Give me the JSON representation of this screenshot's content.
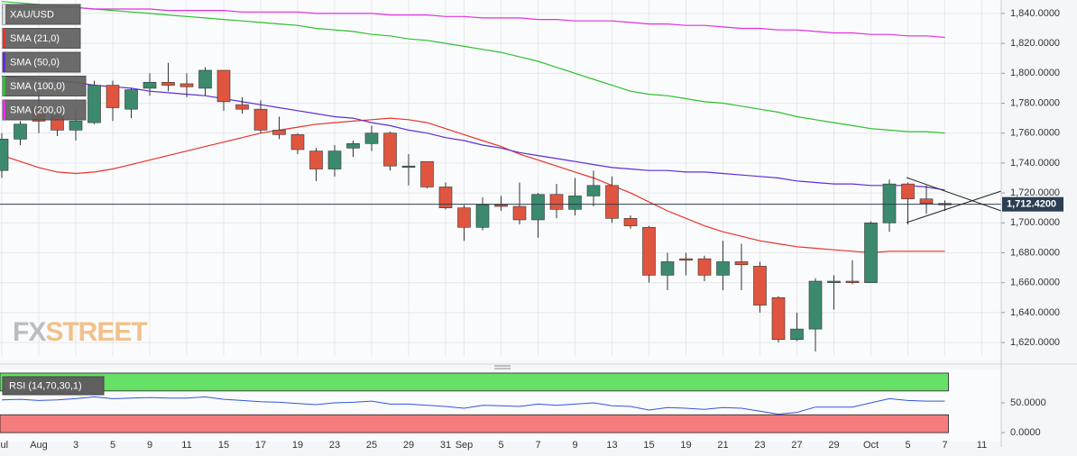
{
  "chart_data": [
    {
      "type": "candlestick",
      "symbol": "XAU/USD",
      "categories": [
        "Jul",
        null,
        "Aug",
        null,
        "3",
        null,
        "5",
        null,
        "9",
        null,
        "11",
        null,
        "15",
        null,
        "17",
        null,
        "19",
        null,
        "23",
        null,
        "25",
        null,
        "29",
        null,
        "31",
        "Sep",
        null,
        "5",
        null,
        "7",
        null,
        "9",
        null,
        "13",
        null,
        "15",
        null,
        "19",
        null,
        "21",
        null,
        "23",
        null,
        "27",
        null,
        "29",
        null,
        "Oct",
        null,
        "5",
        null,
        "7",
        null,
        "11"
      ],
      "open": [
        1735,
        1756,
        1778,
        1772,
        1762,
        1767,
        1792,
        1776,
        1790,
        1794,
        1793,
        1790,
        1802,
        1779,
        1776,
        1762,
        1759,
        1748,
        1736,
        1750,
        1753,
        1760,
        1738,
        1741,
        1724,
        1710,
        1697,
        1712,
        1711,
        1702,
        1719,
        1709,
        1718,
        1725,
        1703,
        1697,
        1665,
        1676,
        1676,
        1665,
        1674,
        1671,
        1650,
        1622,
        1629,
        1660,
        1661,
        1660,
        1700,
        1726,
        1716,
        1713,
        null,
        null
      ],
      "high": [
        1760,
        1768,
        1790,
        1778,
        1775,
        1795,
        1795,
        1790,
        1800,
        1807,
        1800,
        1804,
        1802,
        1784,
        1782,
        1771,
        1760,
        1750,
        1752,
        1755,
        1765,
        1761,
        1746,
        1741,
        1727,
        1712,
        1717,
        1718,
        1727,
        1720,
        1726,
        1730,
        1735,
        1731,
        1705,
        1698,
        1680,
        1680,
        1678,
        1688,
        1686,
        1674,
        1651,
        1640,
        1663,
        1665,
        1675,
        1701,
        1729,
        1727,
        1725,
        1715,
        null,
        null
      ],
      "low": [
        1730,
        1752,
        1760,
        1758,
        1755,
        1766,
        1768,
        1770,
        1785,
        1788,
        1784,
        1785,
        1775,
        1773,
        1760,
        1756,
        1746,
        1728,
        1731,
        1744,
        1748,
        1735,
        1725,
        1723,
        1709,
        1688,
        1695,
        1708,
        1699,
        1690,
        1703,
        1705,
        1711,
        1700,
        1696,
        1660,
        1655,
        1665,
        1661,
        1655,
        1655,
        1640,
        1620,
        1621,
        1614,
        1642,
        1659,
        1660,
        1694,
        1699,
        1706,
        1708,
        null,
        null
      ],
      "close": [
        1756,
        1766,
        1768,
        1762,
        1768,
        1792,
        1777,
        1789,
        1794,
        1792,
        1791,
        1802,
        1781,
        1776,
        1762,
        1759,
        1749,
        1736,
        1748,
        1753,
        1760,
        1738,
        1738,
        1724,
        1710,
        1697,
        1712,
        1711,
        1702,
        1719,
        1709,
        1718,
        1725,
        1703,
        1698,
        1665,
        1674,
        1675,
        1665,
        1674,
        1672,
        1645,
        1622,
        1629,
        1661,
        1661,
        1660,
        1700,
        1726,
        1716,
        1713,
        1712,
        null,
        null
      ],
      "up_color": "#3b8a6e",
      "down_color": "#e0553f",
      "series": [
        {
          "name": "SMA (21,0)",
          "color": "#e8332a",
          "values": [
            1745,
            1741,
            1737,
            1734,
            1733,
            1734,
            1736,
            1739,
            1742,
            1745,
            1748,
            1751,
            1754,
            1757,
            1760,
            1762,
            1764,
            1766,
            1767,
            1768,
            1769,
            1770,
            1769,
            1767,
            1763,
            1759,
            1755,
            1751,
            1746,
            1742,
            1738,
            1734,
            1730,
            1725,
            1720,
            1714,
            1708,
            1703,
            1698,
            1694,
            1691,
            1688,
            1686,
            1684,
            1683,
            1682,
            1681,
            1680,
            1681,
            1681,
            1681,
            1681,
            null,
            null
          ]
        },
        {
          "name": "SMA (50,0)",
          "color": "#5b2fd6",
          "values": [
            1798,
            1797,
            1796,
            1795,
            1794,
            1792,
            1791,
            1790,
            1788,
            1787,
            1786,
            1785,
            1783,
            1781,
            1779,
            1777,
            1775,
            1773,
            1771,
            1770,
            1767,
            1765,
            1762,
            1760,
            1757,
            1755,
            1752,
            1750,
            1747,
            1745,
            1743,
            1741,
            1739,
            1737,
            1736,
            1735,
            1735,
            1734,
            1734,
            1733,
            1732,
            1731,
            1730,
            1728,
            1727,
            1726,
            1726,
            1725,
            1725,
            1725,
            1724,
            1722,
            null,
            null
          ]
        },
        {
          "name": "SMA (100,0)",
          "color": "#2ec02e",
          "values": [
            1848,
            1847,
            1846,
            1845,
            1844,
            1843,
            1842,
            1841,
            1840,
            1839,
            1838,
            1837,
            1836,
            1835,
            1834,
            1833,
            1832,
            1830,
            1829,
            1828,
            1826,
            1825,
            1823,
            1822,
            1820,
            1818,
            1816,
            1814,
            1811,
            1808,
            1804,
            1800,
            1796,
            1792,
            1788,
            1786,
            1785,
            1783,
            1781,
            1780,
            1778,
            1776,
            1774,
            1771,
            1769,
            1767,
            1765,
            1763,
            1762,
            1761,
            1761,
            1760,
            null,
            null
          ]
        },
        {
          "name": "SMA (200,0)",
          "color": "#e030e0",
          "values": [
            1844,
            1844,
            1844,
            1844,
            1844,
            1843,
            1843,
            1843,
            1843,
            1842,
            1842,
            1842,
            1842,
            1841,
            1841,
            1841,
            1841,
            1840,
            1840,
            1840,
            1840,
            1839,
            1839,
            1839,
            1838,
            1838,
            1837,
            1837,
            1837,
            1836,
            1836,
            1835,
            1835,
            1835,
            1834,
            1833,
            1833,
            1832,
            1832,
            1831,
            1830,
            1830,
            1829,
            1829,
            1828,
            1827,
            1827,
            1826,
            1826,
            1825,
            1825,
            1824,
            null,
            null
          ]
        }
      ],
      "ylim": [
        1611,
        1849
      ],
      "yticks": [
        {
          "value": 1620,
          "label": "1,620.0000"
        },
        {
          "value": 1640,
          "label": "1,640.0000"
        },
        {
          "value": 1660,
          "label": "1,660.0000"
        },
        {
          "value": 1680,
          "label": "1,680.0000"
        },
        {
          "value": 1700,
          "label": "1,700.0000"
        },
        {
          "value": 1720,
          "label": "1,720.0000"
        },
        {
          "value": 1740,
          "label": "1,740.0000"
        },
        {
          "value": 1760,
          "label": "1,760.0000"
        },
        {
          "value": 1780,
          "label": "1,780.0000"
        },
        {
          "value": 1800,
          "label": "1,800.0000"
        },
        {
          "value": 1820,
          "label": "1,820.0000"
        },
        {
          "value": 1840,
          "label": "1,840.0000"
        }
      ],
      "last_price": {
        "value": 1712.42,
        "label": "1,712.4200"
      },
      "grid": true,
      "watermark": [
        "FX",
        "STREET"
      ]
    },
    {
      "type": "line",
      "name": "RSI (14,70,30,1)",
      "color": "#3355dd",
      "values": [
        55,
        56,
        54,
        55,
        57,
        60,
        57,
        58,
        59,
        58,
        58,
        60,
        56,
        54,
        52,
        51,
        49,
        47,
        50,
        51,
        53,
        48,
        48,
        46,
        44,
        41,
        46,
        45,
        44,
        48,
        46,
        48,
        50,
        45,
        44,
        38,
        42,
        41,
        39,
        42,
        41,
        36,
        31,
        34,
        43,
        43,
        43,
        50,
        57,
        54,
        53,
        53,
        null,
        null
      ],
      "ylim": [
        -15,
        103
      ],
      "yticks": [
        {
          "value": 0,
          "label": "0.0000"
        },
        {
          "value": 50,
          "label": "50.0000"
        }
      ],
      "bands": [
        {
          "range": [
            70,
            100
          ],
          "color": "#66e066"
        },
        {
          "range": [
            0,
            30
          ],
          "color": "#f57c7c"
        }
      ]
    }
  ]
}
